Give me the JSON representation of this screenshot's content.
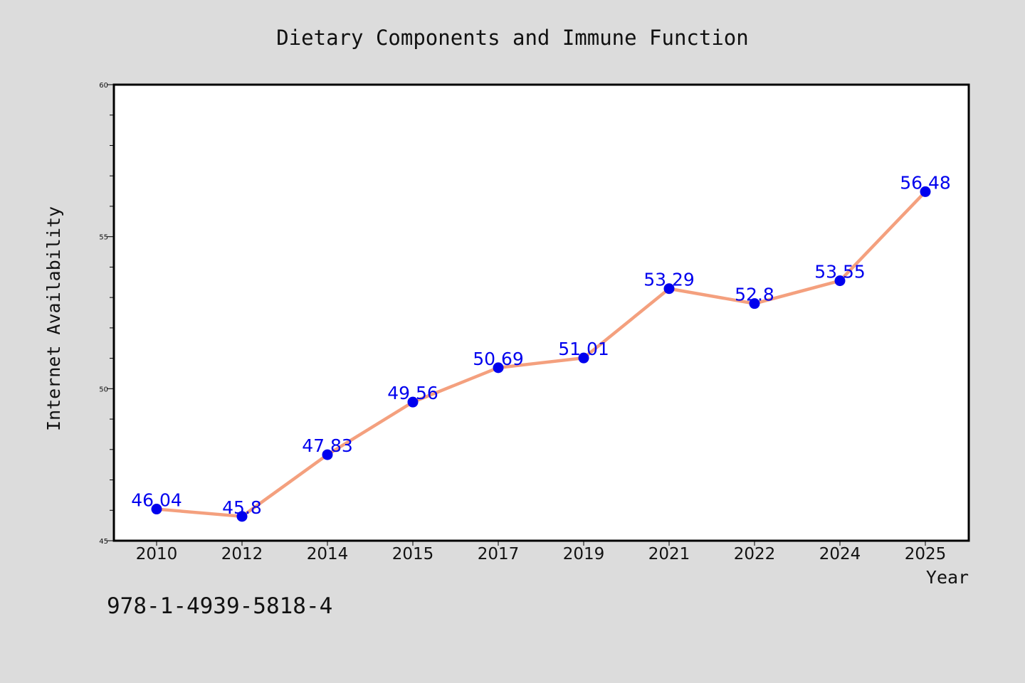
{
  "chart_data": {
    "type": "line",
    "title": "Dietary Components and Immune Function",
    "xlabel": "Year",
    "ylabel": "Internet Availability",
    "categories": [
      "2010",
      "2012",
      "2014",
      "2015",
      "2017",
      "2019",
      "2021",
      "2022",
      "2024",
      "2025"
    ],
    "series": [
      {
        "values": [
          46.04,
          45.8,
          47.83,
          49.56,
          50.69,
          51.01,
          53.29,
          52.8,
          53.55,
          56.48
        ],
        "data_labels": [
          "46.04",
          "45.8",
          "47.83",
          "49.56",
          "50.69",
          "51.01",
          "53.29",
          "52.8",
          "53.55",
          "56.48"
        ],
        "line_color": "#f4a07e",
        "marker_color": "#0000ee",
        "label_color": "#0000ee"
      }
    ],
    "ylim": [
      45,
      60
    ],
    "yticks": [
      "45",
      "50",
      "55",
      "60"
    ],
    "grid": false,
    "legend": "none"
  },
  "footer": {
    "text": "978-1-4939-5818-4"
  }
}
